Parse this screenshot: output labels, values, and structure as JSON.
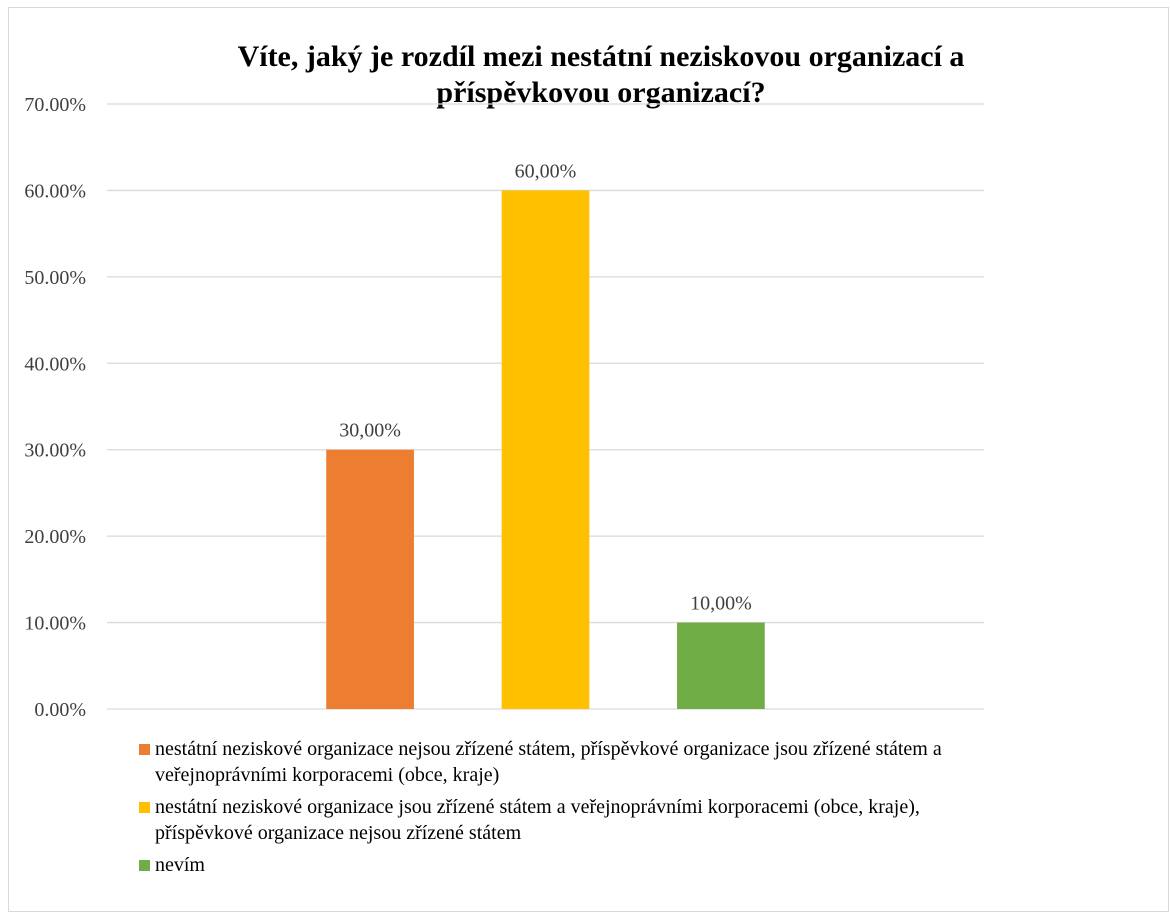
{
  "chart_data": {
    "type": "bar",
    "title_lines": [
      "Víte, jaký je rozdíl mezi nestátní neziskovou organizací a",
      "příspěvkovou organizací?"
    ],
    "xlabel": "",
    "ylabel": "",
    "ylim": [
      0,
      70
    ],
    "y_ticks": [
      "0.00%",
      "10.00%",
      "20.00%",
      "30.00%",
      "40.00%",
      "50.00%",
      "60.00%",
      "70.00%"
    ],
    "grid": true,
    "legend_position": "bottom",
    "series": [
      {
        "name": "nestátní neziskové organizace nejsou zřízené státem, příspěvkové organizace jsou zřízené státem a veřejnoprávními korporacemi (obce, kraje)",
        "value": 30,
        "data_label": "30,00%",
        "color": "#ED7D31"
      },
      {
        "name": "nestátní neziskové organizace jsou zřízené státem a veřejnoprávními korporacemi (obce, kraje), příspěvkové organizace nejsou zřízené státem",
        "value": 60,
        "data_label": "60,00%",
        "color": "#FFC000"
      },
      {
        "name": "nevím",
        "value": 10,
        "data_label": "10,00%",
        "color": "#70AD47"
      }
    ]
  }
}
